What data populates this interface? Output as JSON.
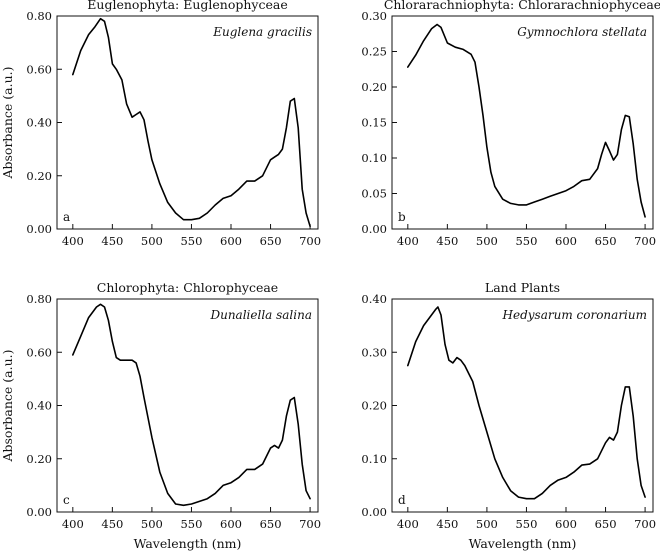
{
  "figure": {
    "xlabel": "Wavelength (nm)",
    "ylabel": "Absorbance (a.u.)"
  },
  "chart_data": [
    {
      "type": "line",
      "panel_letter": "a",
      "title": "Euglenophyta: Euglenophyceae",
      "species": "Euglena gracilis",
      "xlabel": "",
      "ylabel": "Absorbance (a.u.)",
      "xlim": [
        380,
        710
      ],
      "ylim": [
        0,
        0.8
      ],
      "xticks": [
        400,
        450,
        500,
        550,
        600,
        650,
        700
      ],
      "yticks": [
        "0.00",
        "0.20",
        "0.40",
        "0.60",
        "0.80"
      ],
      "series": [
        {
          "x": [
            400,
            410,
            420,
            428,
            435,
            440,
            445,
            450,
            455,
            462,
            468,
            475,
            480,
            485,
            490,
            495,
            500,
            510,
            520,
            530,
            540,
            550,
            560,
            570,
            580,
            590,
            600,
            610,
            620,
            630,
            640,
            650,
            655,
            660,
            665,
            670,
            675,
            680,
            685,
            690,
            695,
            700
          ],
          "y": [
            0.58,
            0.67,
            0.73,
            0.76,
            0.79,
            0.78,
            0.72,
            0.62,
            0.6,
            0.56,
            0.47,
            0.42,
            0.43,
            0.44,
            0.41,
            0.33,
            0.26,
            0.17,
            0.1,
            0.06,
            0.035,
            0.035,
            0.04,
            0.06,
            0.09,
            0.115,
            0.125,
            0.15,
            0.18,
            0.18,
            0.2,
            0.26,
            0.27,
            0.28,
            0.3,
            0.38,
            0.48,
            0.49,
            0.38,
            0.15,
            0.06,
            0.01
          ]
        }
      ]
    },
    {
      "type": "line",
      "panel_letter": "b",
      "title": "Chlorarachniophyta: Chlorarachniophyceae",
      "species": "Gymnochlora stellata",
      "xlabel": "",
      "ylabel": "",
      "xlim": [
        380,
        710
      ],
      "ylim": [
        0,
        0.3
      ],
      "xticks": [
        400,
        450,
        500,
        550,
        600,
        650,
        700
      ],
      "yticks": [
        "0.00",
        "0.05",
        "0.10",
        "0.15",
        "0.20",
        "0.25",
        "0.30"
      ],
      "series": [
        {
          "x": [
            400,
            410,
            420,
            430,
            437,
            442,
            450,
            460,
            470,
            480,
            485,
            490,
            495,
            500,
            505,
            510,
            520,
            530,
            540,
            550,
            560,
            570,
            580,
            590,
            600,
            610,
            620,
            630,
            640,
            645,
            650,
            655,
            660,
            665,
            670,
            675,
            680,
            685,
            690,
            695,
            700
          ],
          "y": [
            0.228,
            0.245,
            0.265,
            0.282,
            0.288,
            0.284,
            0.262,
            0.256,
            0.253,
            0.246,
            0.235,
            0.2,
            0.16,
            0.115,
            0.08,
            0.06,
            0.042,
            0.036,
            0.034,
            0.034,
            0.038,
            0.042,
            0.046,
            0.05,
            0.054,
            0.06,
            0.068,
            0.07,
            0.085,
            0.105,
            0.122,
            0.11,
            0.097,
            0.105,
            0.14,
            0.16,
            0.158,
            0.12,
            0.07,
            0.038,
            0.017
          ]
        }
      ]
    },
    {
      "type": "line",
      "panel_letter": "c",
      "title": "Chlorophyta: Chlorophyceae",
      "species": "Dunaliella salina",
      "xlabel": "Wavelength (nm)",
      "ylabel": "Absorbance (a.u.)",
      "xlim": [
        380,
        710
      ],
      "ylim": [
        0,
        0.8
      ],
      "xticks": [
        400,
        450,
        500,
        550,
        600,
        650,
        700
      ],
      "yticks": [
        "0.00",
        "0.20",
        "0.40",
        "0.60",
        "0.80"
      ],
      "series": [
        {
          "x": [
            400,
            410,
            420,
            430,
            435,
            440,
            445,
            450,
            455,
            460,
            465,
            470,
            475,
            480,
            485,
            490,
            500,
            510,
            520,
            530,
            540,
            550,
            560,
            570,
            580,
            590,
            600,
            610,
            620,
            630,
            640,
            650,
            655,
            660,
            665,
            670,
            675,
            680,
            685,
            690,
            695,
            700
          ],
          "y": [
            0.59,
            0.66,
            0.73,
            0.77,
            0.78,
            0.77,
            0.72,
            0.64,
            0.58,
            0.57,
            0.57,
            0.57,
            0.57,
            0.56,
            0.51,
            0.43,
            0.28,
            0.15,
            0.07,
            0.03,
            0.025,
            0.03,
            0.04,
            0.05,
            0.07,
            0.1,
            0.11,
            0.13,
            0.16,
            0.16,
            0.18,
            0.24,
            0.25,
            0.24,
            0.27,
            0.36,
            0.42,
            0.43,
            0.33,
            0.18,
            0.08,
            0.05
          ]
        }
      ]
    },
    {
      "type": "line",
      "panel_letter": "d",
      "title": "Land Plants",
      "species": "Hedysarum coronarium",
      "xlabel": "Wavelength (nm)",
      "ylabel": "",
      "xlim": [
        380,
        710
      ],
      "ylim": [
        0,
        0.4
      ],
      "xticks": [
        400,
        450,
        500,
        550,
        600,
        650,
        700
      ],
      "yticks": [
        "0.00",
        "0.10",
        "0.20",
        "0.30",
        "0.40"
      ],
      "series": [
        {
          "x": [
            400,
            410,
            420,
            430,
            435,
            438,
            442,
            447,
            452,
            457,
            462,
            467,
            472,
            477,
            482,
            490,
            500,
            510,
            520,
            530,
            540,
            550,
            560,
            570,
            580,
            590,
            600,
            610,
            620,
            630,
            640,
            650,
            655,
            660,
            665,
            670,
            675,
            680,
            685,
            690,
            695,
            700
          ],
          "y": [
            0.275,
            0.32,
            0.35,
            0.37,
            0.38,
            0.385,
            0.37,
            0.315,
            0.285,
            0.28,
            0.29,
            0.285,
            0.275,
            0.26,
            0.245,
            0.2,
            0.15,
            0.1,
            0.065,
            0.04,
            0.028,
            0.025,
            0.025,
            0.035,
            0.05,
            0.06,
            0.065,
            0.075,
            0.088,
            0.09,
            0.1,
            0.13,
            0.14,
            0.135,
            0.15,
            0.2,
            0.235,
            0.235,
            0.18,
            0.1,
            0.05,
            0.028
          ]
        }
      ]
    }
  ]
}
